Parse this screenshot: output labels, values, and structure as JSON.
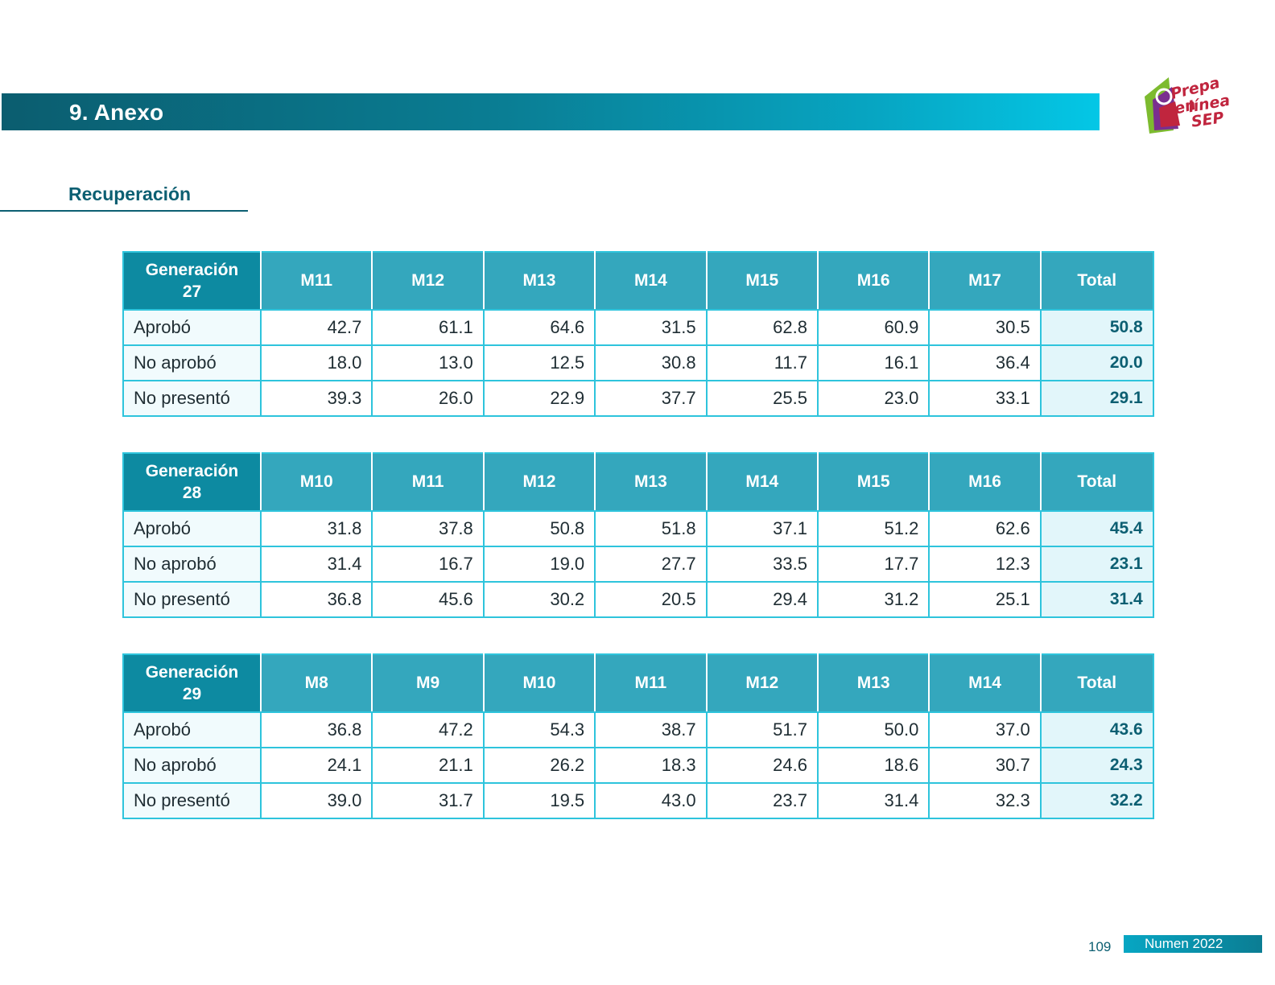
{
  "header": {
    "section_number_title": "9. Anexo"
  },
  "logo": {
    "line1": "Prepa en",
    "line2": "línea",
    "line3": "SEP"
  },
  "section": {
    "title": "Recuperación"
  },
  "tables": [
    {
      "gen_label": "Generación",
      "gen_number": "27",
      "columns": [
        "M11",
        "M12",
        "M13",
        "M14",
        "M15",
        "M16",
        "M17",
        "Total"
      ],
      "rows": [
        {
          "label": "Aprobó",
          "values": [
            "42.7",
            "61.1",
            "64.6",
            "31.5",
            "62.8",
            "60.9",
            "30.5"
          ],
          "total": "50.8"
        },
        {
          "label": "No aprobó",
          "values": [
            "18.0",
            "13.0",
            "12.5",
            "30.8",
            "11.7",
            "16.1",
            "36.4"
          ],
          "total": "20.0"
        },
        {
          "label": "No presentó",
          "values": [
            "39.3",
            "26.0",
            "22.9",
            "37.7",
            "25.5",
            "23.0",
            "33.1"
          ],
          "total": "29.1"
        }
      ]
    },
    {
      "gen_label": "Generación",
      "gen_number": "28",
      "columns": [
        "M10",
        "M11",
        "M12",
        "M13",
        "M14",
        "M15",
        "M16",
        "Total"
      ],
      "rows": [
        {
          "label": "Aprobó",
          "values": [
            "31.8",
            "37.8",
            "50.8",
            "51.8",
            "37.1",
            "51.2",
            "62.6"
          ],
          "total": "45.4"
        },
        {
          "label": "No aprobó",
          "values": [
            "31.4",
            "16.7",
            "19.0",
            "27.7",
            "33.5",
            "17.7",
            "12.3"
          ],
          "total": "23.1"
        },
        {
          "label": "No presentó",
          "values": [
            "36.8",
            "45.6",
            "30.2",
            "20.5",
            "29.4",
            "31.2",
            "25.1"
          ],
          "total": "31.4"
        }
      ]
    },
    {
      "gen_label": "Generación",
      "gen_number": "29",
      "columns": [
        "M8",
        "M9",
        "M10",
        "M11",
        "M12",
        "M13",
        "M14",
        "Total"
      ],
      "rows": [
        {
          "label": "Aprobó",
          "values": [
            "36.8",
            "47.2",
            "54.3",
            "38.7",
            "51.7",
            "50.0",
            "37.0"
          ],
          "total": "43.6"
        },
        {
          "label": "No aprobó",
          "values": [
            "24.1",
            "21.1",
            "26.2",
            "18.3",
            "24.6",
            "18.6",
            "30.7"
          ],
          "total": "24.3"
        },
        {
          "label": "No presentó",
          "values": [
            "39.0",
            "31.7",
            "19.5",
            "43.0",
            "23.7",
            "31.4",
            "32.3"
          ],
          "total": "32.2"
        }
      ]
    }
  ],
  "footer": {
    "page_number": "109",
    "publication": "Numen 2022"
  }
}
